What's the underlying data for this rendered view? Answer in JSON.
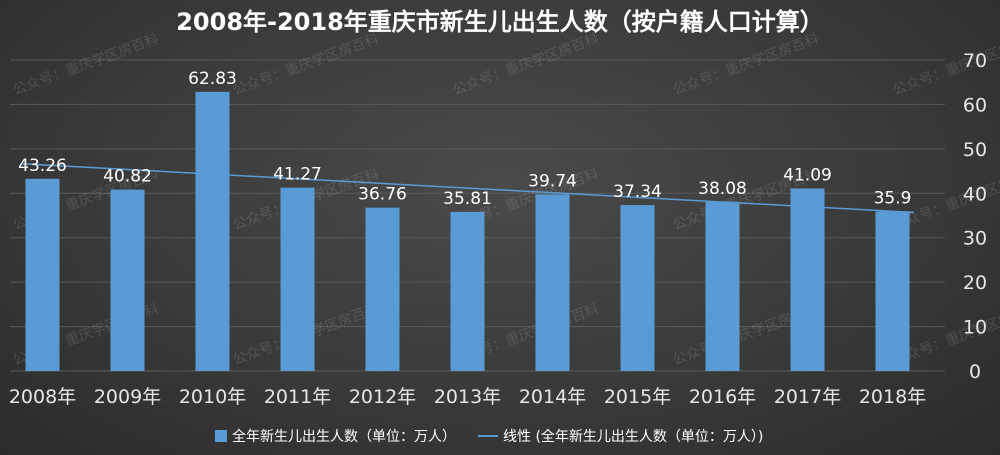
{
  "chart_data": {
    "type": "bar",
    "title": "2008年-2018年重庆市新生儿出生人数（按户籍人口计算）",
    "categories": [
      "2008年",
      "2009年",
      "2010年",
      "2011年",
      "2012年",
      "2013年",
      "2014年",
      "2015年",
      "2016年",
      "2017年",
      "2018年"
    ],
    "series": [
      {
        "name": "全年新生儿出生人数（单位：万人）",
        "values": [
          43.26,
          40.82,
          62.83,
          41.27,
          36.76,
          35.81,
          39.74,
          37.34,
          38.08,
          41.09,
          35.9
        ],
        "data_labels": [
          "43.26",
          "40.82",
          "62.83",
          "41.27",
          "36.76",
          "35.81",
          "39.74",
          "37.34",
          "38.08",
          "41.09",
          "35.9"
        ],
        "color": "#5b9bd5"
      },
      {
        "name": "线性 (全年新生儿出生人数（单位：万人）)",
        "kind": "linear-trendline",
        "color": "#5b9bd5"
      }
    ],
    "y_ticks": [
      "0",
      "10",
      "20",
      "30",
      "40",
      "50",
      "60",
      "70"
    ],
    "ylim": [
      0,
      70
    ],
    "y_axis_side": "right",
    "grid": true,
    "legend_position": "bottom",
    "watermark": "公众号：重庆学区房百科"
  }
}
